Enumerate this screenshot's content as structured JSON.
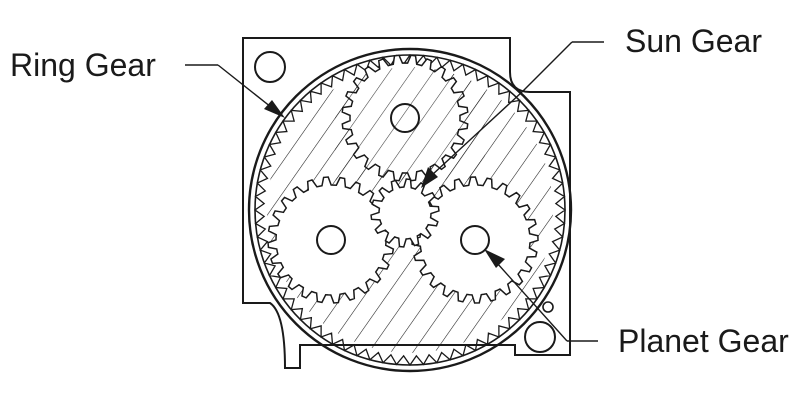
{
  "labels": {
    "ring_gear": "Ring Gear",
    "sun_gear": "Sun Gear",
    "planet_gear": "Planet Gear"
  },
  "counts": {
    "ring_teeth": 72,
    "sun_teeth": 14,
    "planet_teeth": 24,
    "planets": 3
  },
  "colors": {
    "line": "#1a1a1a",
    "background": "#ffffff"
  }
}
